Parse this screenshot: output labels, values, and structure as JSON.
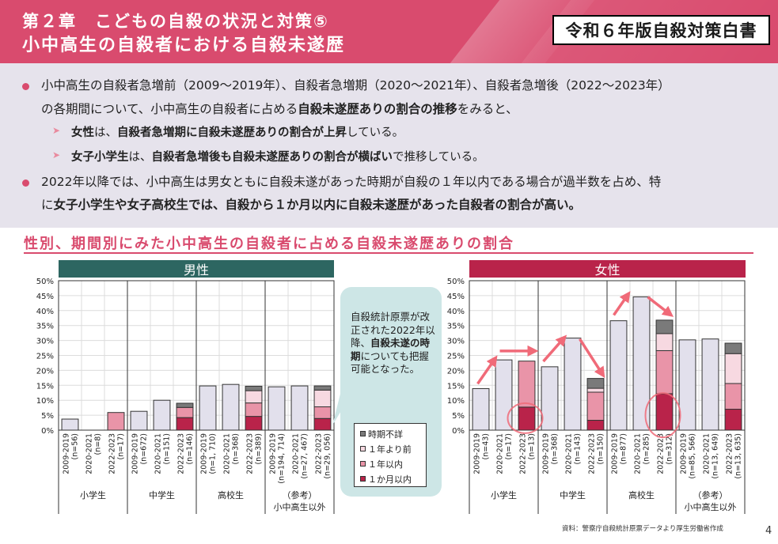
{
  "header": {
    "chapter_title": "第２章　こどもの自殺の状況と対策⑤",
    "page_title": "小中高生の自殺者における自殺未遂歴",
    "publication_badge": "令和６年版自殺対策白書"
  },
  "summary": {
    "bullet1_line1": "小中高生の自殺者急増前（2009～2019年）、自殺者急増期（2020～2021年）、自殺者急増後（2022～2023年）",
    "bullet1_line2_pre": "の各期間について、小中高生の自殺者に占める",
    "bullet1_line2_bold": "自殺未遂歴ありの割合の推移",
    "bullet1_line2_post": "をみると、",
    "sub1_bold1": "女性",
    "sub1_text1": "は、",
    "sub1_bold2": "自殺者急増期に自殺未遂歴ありの割合が上昇",
    "sub1_text2": "している。",
    "sub2_bold1": "女子小学生",
    "sub2_text1": "は、",
    "sub2_bold2": "自殺者急増後も自殺未遂歴ありの割合が横ばい",
    "sub2_text2": "で推移している。",
    "bullet2_line1": "2022年以降では、小中高生は男女ともに自殺未遂があった時期が自殺の１年以内である場合が過半数を占め、特",
    "bullet2_line2_pre": "に",
    "bullet2_line2_bold": "女子小学生や女子高校生では、自殺から１か月以内に自殺未遂歴があった自殺者の割合が高い。"
  },
  "section_title": "性別、期間別にみた小中高生の自殺者に占める自殺未遂歴ありの割合",
  "callout": {
    "text_pre": "自殺統計原票が改正された2022年以降、",
    "text_bold": "自殺未遂の時期",
    "text_post": "についても把握可能となった。"
  },
  "colors": {
    "accent": "#d94b6e",
    "male_header": "#2d6661",
    "female_header": "#b9234a",
    "total_bar": "#e2e0ec",
    "within_1_month": "#b9234a",
    "within_1_year": "#e994a8",
    "over_1_year": "#f7d9e1",
    "unknown": "#7a7a7a",
    "arrow": "#f06a78"
  },
  "chart_data": [
    {
      "type": "bar",
      "title": "男性",
      "ylabel": "",
      "ylim": [
        0,
        50
      ],
      "yticks": [
        "0%",
        "5%",
        "10%",
        "15%",
        "20%",
        "25%",
        "30%",
        "35%",
        "40%",
        "45%",
        "50%"
      ],
      "grid": true,
      "groups": [
        "小学生",
        "中学生",
        "高校生",
        "（参考）小中高生以外"
      ],
      "categories": [
        {
          "period": "2009-2019",
          "n": "(n=56)"
        },
        {
          "period": "2020-2021",
          "n": "(n=8)"
        },
        {
          "period": "2022-2023",
          "n": "(n=17)"
        },
        {
          "period": "2009-2019",
          "n": "(n=672)"
        },
        {
          "period": "2020-2021",
          "n": "(n=151)"
        },
        {
          "period": "2022-2023",
          "n": "(n=146)"
        },
        {
          "period": "2009-2019",
          "n": "(n=1, 710)"
        },
        {
          "period": "2020-2021",
          "n": "(n=368)"
        },
        {
          "period": "2022-2023",
          "n": "(n=389)"
        },
        {
          "period": "2009-2019",
          "n": "(n=194, 714)"
        },
        {
          "period": "2020-2021",
          "n": "(n=27, 467)"
        },
        {
          "period": "2022-2023",
          "n": "(n=29, 056)"
        }
      ],
      "total_values": [
        3.7,
        0,
        null,
        6.3,
        10.0,
        null,
        14.8,
        15.3,
        null,
        14.5,
        14.8,
        null
      ],
      "series": [
        {
          "name": "1か月以内",
          "values": [
            null,
            null,
            0,
            null,
            null,
            4.2,
            null,
            null,
            4.6,
            null,
            null,
            3.9
          ]
        },
        {
          "name": "1年以内",
          "values": [
            null,
            null,
            5.9,
            null,
            null,
            3.4,
            null,
            null,
            4.5,
            null,
            null,
            3.9
          ]
        },
        {
          "name": "1年より前",
          "values": [
            null,
            null,
            0,
            null,
            null,
            0,
            null,
            null,
            4.1,
            null,
            null,
            5.6
          ]
        },
        {
          "name": "時期不詳",
          "values": [
            null,
            null,
            0,
            null,
            null,
            1.4,
            null,
            null,
            1.5,
            null,
            null,
            1.4
          ]
        }
      ]
    },
    {
      "type": "bar",
      "title": "女性",
      "ylabel": "",
      "ylim": [
        0,
        50
      ],
      "yticks": [
        "0%",
        "5%",
        "10%",
        "15%",
        "20%",
        "25%",
        "30%",
        "35%",
        "40%",
        "45%",
        "50%"
      ],
      "grid": true,
      "groups": [
        "小学生",
        "中学生",
        "高校生",
        "（参考）小中高生以外"
      ],
      "categories": [
        {
          "period": "2009-2019",
          "n": "(n=43)"
        },
        {
          "period": "2020-2021",
          "n": "(n=17)"
        },
        {
          "period": "2022-2023",
          "n": "(n=13)"
        },
        {
          "period": "2009-2019",
          "n": "(n=368)"
        },
        {
          "period": "2020-2021",
          "n": "(n=143)"
        },
        {
          "period": "2022-2023",
          "n": "(n=150)"
        },
        {
          "period": "2009-2019",
          "n": "(n=877)"
        },
        {
          "period": "2020-2021",
          "n": "(n=285)"
        },
        {
          "period": "2022-2023",
          "n": "(n=312)"
        },
        {
          "period": "2009-2019",
          "n": "(n=85, 566)"
        },
        {
          "period": "2020-2021",
          "n": "(n=13, 649)"
        },
        {
          "period": "2022-2023",
          "n": "(n=13, 635)"
        }
      ],
      "total_values": [
        13.9,
        23.5,
        null,
        21.2,
        30.8,
        null,
        36.6,
        44.6,
        null,
        30.2,
        30.5,
        null
      ],
      "series": [
        {
          "name": "1か月以内",
          "values": [
            null,
            null,
            7.7,
            null,
            null,
            3.3,
            null,
            null,
            12.2,
            null,
            null,
            7.0
          ]
        },
        {
          "name": "1年以内",
          "values": [
            null,
            null,
            15.4,
            null,
            null,
            9.4,
            null,
            null,
            14.4,
            null,
            null,
            8.6
          ]
        },
        {
          "name": "1年より前",
          "values": [
            null,
            null,
            0,
            null,
            null,
            1.3,
            null,
            null,
            5.7,
            null,
            null,
            10.0
          ]
        },
        {
          "name": "時期不詳",
          "values": [
            null,
            null,
            0,
            null,
            null,
            3.3,
            null,
            null,
            4.5,
            null,
            null,
            3.5
          ]
        }
      ],
      "annotations": [
        "increase arrows 2009-2019→2020-2021 (小学生, 中学生, 高校生)",
        "flat arrow 小学生 2020-2021→2022-2023",
        "decrease arrows 中学生, 高校生 2020-2021→2022-2023",
        "circles on 1か月以内 for 小学生 and 高校生 2022-2023"
      ]
    }
  ],
  "legend": [
    {
      "label": "時期不詳",
      "key": "unknown"
    },
    {
      "label": "１年より前",
      "key": "over_1_year"
    },
    {
      "label": "１年以内",
      "key": "within_1_year"
    },
    {
      "label": "１か月以内",
      "key": "within_1_month"
    }
  ],
  "source": "資料：警察庁自殺統計原票データより厚生労働省作成",
  "page_number": "4"
}
